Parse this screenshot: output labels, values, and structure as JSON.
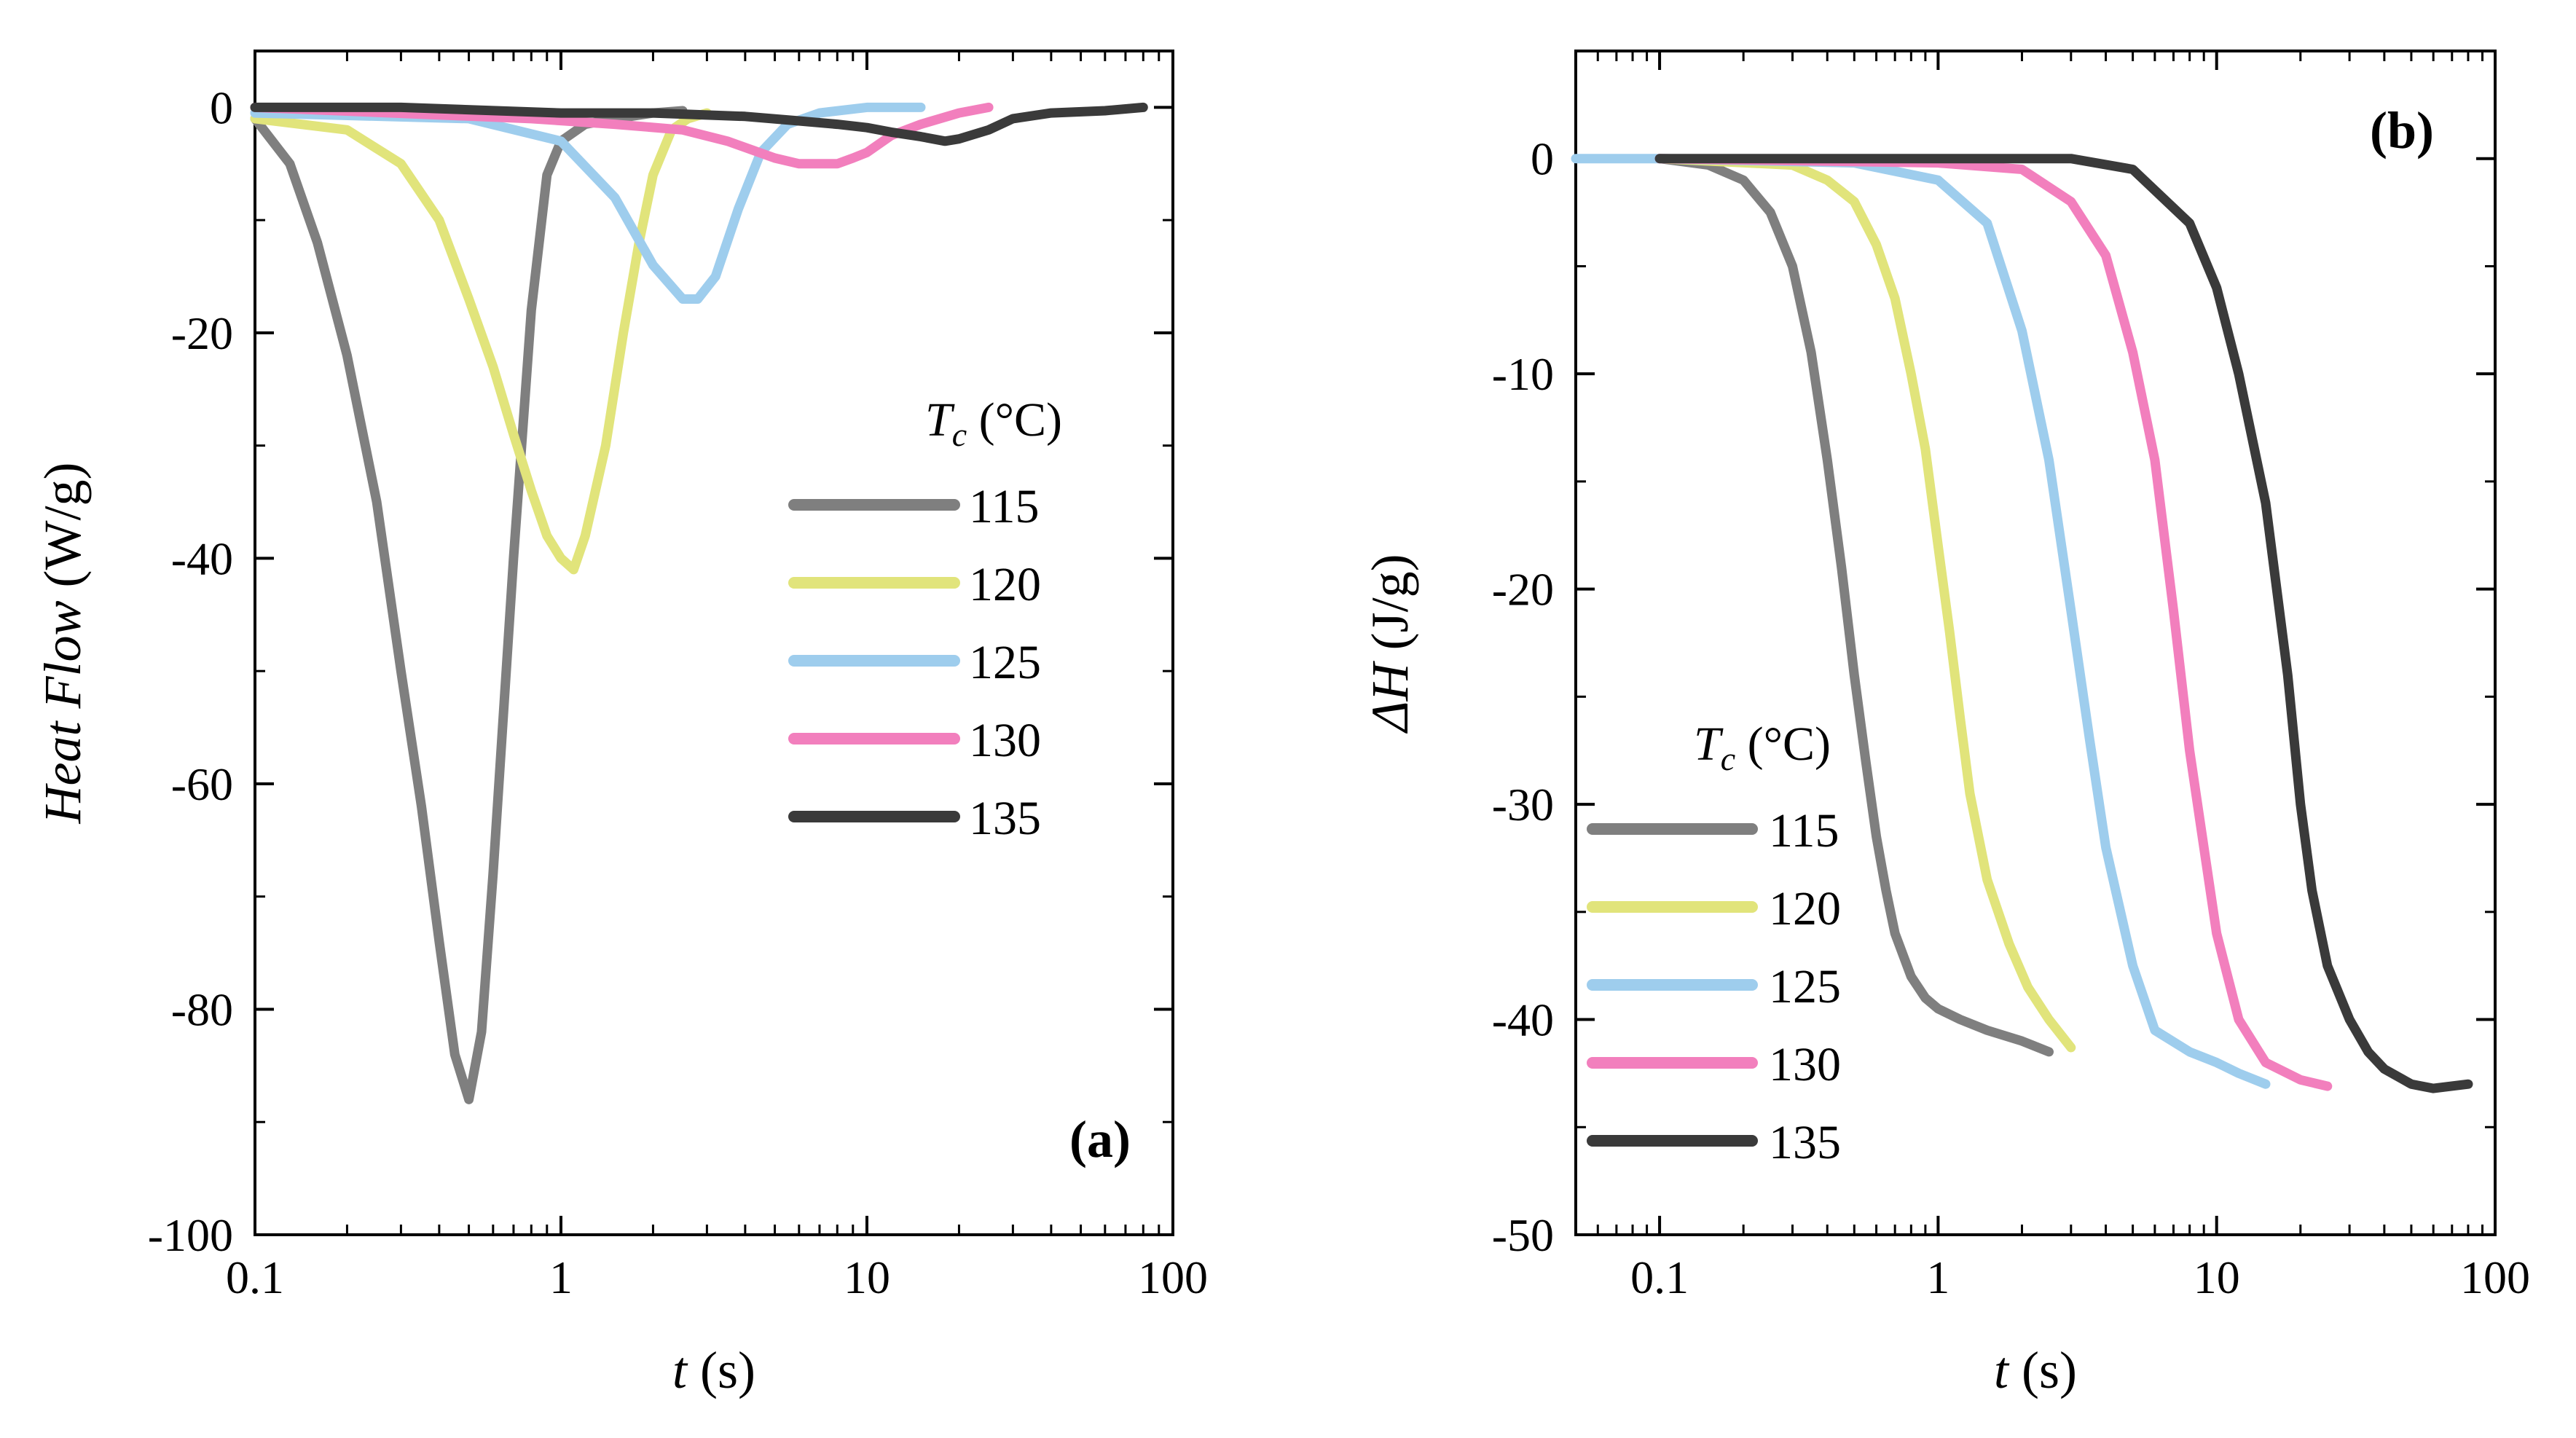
{
  "chart_data": [
    {
      "panel": "(a)",
      "type": "line",
      "xscale": "log",
      "xlim": [
        0.1,
        100
      ],
      "ylim": [
        -100,
        5
      ],
      "xticks": [
        0.1,
        1,
        10,
        100
      ],
      "xtick_labels": [
        "0.1",
        "1",
        "10",
        "100"
      ],
      "yticks": [
        0,
        -20,
        -40,
        -60,
        -80,
        -100
      ],
      "ytick_labels": [
        "0",
        "-20",
        "-40",
        "-60",
        "-80",
        "-100"
      ],
      "xlabel_var": "t",
      "xlabel_unit": " (s)",
      "ylabel_var": "Heat Flow",
      "ylabel_unit": " (W/g)",
      "legend_title_var": "T",
      "legend_title_sub": "c",
      "legend_title_unit": " (°C)",
      "legend_position": "center-right",
      "series": [
        {
          "name": "115",
          "color": "#7f7f7f",
          "x": [
            0.1,
            0.13,
            0.16,
            0.2,
            0.25,
            0.3,
            0.35,
            0.4,
            0.45,
            0.5,
            0.55,
            0.6,
            0.7,
            0.8,
            0.9,
            1.0,
            1.2,
            1.5,
            2.0,
            2.5
          ],
          "y": [
            -1,
            -5,
            -12,
            -22,
            -35,
            -50,
            -62,
            -74,
            -84,
            -88,
            -82,
            -68,
            -40,
            -18,
            -6,
            -3,
            -1.5,
            -1,
            -0.5,
            -0.3
          ]
        },
        {
          "name": "120",
          "color": "#e1e47b",
          "x": [
            0.1,
            0.2,
            0.3,
            0.4,
            0.5,
            0.6,
            0.7,
            0.8,
            0.9,
            1.0,
            1.1,
            1.2,
            1.4,
            1.6,
            1.8,
            2.0,
            2.3,
            2.6,
            3.0
          ],
          "y": [
            -1,
            -2,
            -5,
            -10,
            -17,
            -23,
            -29,
            -34,
            -38,
            -40,
            -41,
            -38,
            -30,
            -20,
            -12,
            -6,
            -2,
            -1,
            -0.5
          ]
        },
        {
          "name": "125",
          "color": "#9ecded",
          "x": [
            0.1,
            0.5,
            1.0,
            1.5,
            2.0,
            2.5,
            2.8,
            3.2,
            3.8,
            4.5,
            5.5,
            7,
            10,
            15
          ],
          "y": [
            -0.5,
            -1,
            -3,
            -8,
            -14,
            -17,
            -17,
            -15,
            -9,
            -4,
            -1.5,
            -0.5,
            0,
            0
          ]
        },
        {
          "name": "130",
          "color": "#f27fbd",
          "x": [
            0.1,
            0.8,
            1.5,
            2.5,
            3.5,
            5,
            6,
            7,
            8,
            9,
            10,
            12,
            15,
            20,
            25
          ],
          "y": [
            0,
            -1,
            -1.5,
            -2,
            -3,
            -4.5,
            -5,
            -5,
            -5,
            -4.5,
            -4,
            -2.5,
            -1.5,
            -0.5,
            0
          ]
        },
        {
          "name": "135",
          "color": "#3a3a3a",
          "x": [
            0.1,
            0.3,
            1,
            2,
            4,
            6,
            8,
            10,
            12,
            15,
            18,
            20,
            25,
            30,
            40,
            60,
            80
          ],
          "y": [
            0,
            0,
            -0.5,
            -0.5,
            -0.8,
            -1.2,
            -1.5,
            -1.8,
            -2.2,
            -2.6,
            -3,
            -2.8,
            -2,
            -1,
            -0.5,
            -0.3,
            0
          ]
        }
      ]
    },
    {
      "panel": "(b)",
      "type": "line",
      "xscale": "log",
      "xlim": [
        0.05,
        100
      ],
      "ylim": [
        -50,
        5
      ],
      "xticks": [
        0.1,
        1,
        10,
        100
      ],
      "xtick_labels": [
        "0.1",
        "1",
        "10",
        "100"
      ],
      "yticks": [
        0,
        -10,
        -20,
        -30,
        -40,
        -50
      ],
      "ytick_labels": [
        "0",
        "-10",
        "-20",
        "-30",
        "-40",
        "-50"
      ],
      "xlabel_var": "t",
      "xlabel_unit": " (s)",
      "ylabel_var": "ΔH",
      "ylabel_unit": " (J/g)",
      "legend_title_var": "T",
      "legend_title_sub": "c",
      "legend_title_unit": " (°C)",
      "legend_position": "bottom-left",
      "series": [
        {
          "name": "115",
          "color": "#7f7f7f",
          "x": [
            0.1,
            0.15,
            0.2,
            0.25,
            0.3,
            0.35,
            0.4,
            0.45,
            0.5,
            0.55,
            0.6,
            0.65,
            0.7,
            0.8,
            0.9,
            1.0,
            1.2,
            1.5,
            2.0,
            2.5
          ],
          "y": [
            0,
            -0.3,
            -1,
            -2.5,
            -5,
            -9,
            -14,
            -19,
            -24,
            -28,
            -31.5,
            -34,
            -36,
            -38,
            -39,
            -39.5,
            -40,
            -40.5,
            -41,
            -41.5
          ]
        },
        {
          "name": "120",
          "color": "#e1e47b",
          "x": [
            0.1,
            0.3,
            0.4,
            0.5,
            0.6,
            0.7,
            0.8,
            0.9,
            1.0,
            1.1,
            1.2,
            1.3,
            1.5,
            1.8,
            2.1,
            2.5,
            3.0
          ],
          "y": [
            0,
            -0.3,
            -1,
            -2,
            -4,
            -6.5,
            -10,
            -13.5,
            -18,
            -22,
            -26,
            -29.5,
            -33.5,
            -36.5,
            -38.5,
            -40,
            -41.3
          ]
        },
        {
          "name": "125",
          "color": "#9ecded",
          "x": [
            0.05,
            0.1,
            0.5,
            1.0,
            1.5,
            2.0,
            2.5,
            3.0,
            3.5,
            4.0,
            5.0,
            6.0,
            8.0,
            10,
            12,
            15
          ],
          "y": [
            0,
            0,
            -0.2,
            -1,
            -3,
            -8,
            -14,
            -21,
            -27,
            -32,
            -37.5,
            -40.5,
            -41.5,
            -42,
            -42.5,
            -43
          ]
        },
        {
          "name": "130",
          "color": "#f27fbd",
          "x": [
            0.1,
            1.0,
            2.0,
            3.0,
            4.0,
            5.0,
            6.0,
            7.0,
            8.0,
            9.0,
            10,
            12,
            15,
            20,
            25
          ],
          "y": [
            0,
            -0.2,
            -0.5,
            -2,
            -4.5,
            -9,
            -14,
            -21,
            -27.5,
            -32,
            -36,
            -40,
            -42,
            -42.8,
            -43.1
          ]
        },
        {
          "name": "135",
          "color": "#3a3a3a",
          "x": [
            0.1,
            1.0,
            3.0,
            5.0,
            8.0,
            10,
            12,
            15,
            18,
            20,
            22,
            25,
            30,
            35,
            40,
            50,
            60,
            80
          ],
          "y": [
            0,
            0,
            0,
            -0.5,
            -3,
            -6,
            -10,
            -16,
            -24,
            -30,
            -34,
            -37.5,
            -40,
            -41.5,
            -42.3,
            -43,
            -43.2,
            -43
          ]
        }
      ]
    }
  ]
}
